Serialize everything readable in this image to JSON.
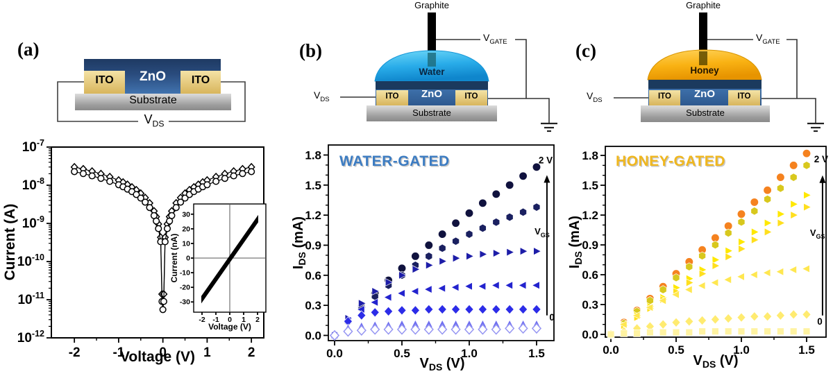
{
  "figure": {
    "panel_labels": {
      "a": "(a)",
      "b": "(b)",
      "c": "(c)"
    },
    "schematics": {
      "a": {
        "zno": "ZnO",
        "ito_left": "ITO",
        "ito_right": "ITO",
        "substrate": "Substrate",
        "vds_base": "V",
        "vds_sub": "DS"
      },
      "b": {
        "graphite": "Graphite",
        "liquid": "Water",
        "zno": "ZnO",
        "ito_left": "ITO",
        "ito_right": "ITO",
        "substrate": "Substrate",
        "vds_base": "V",
        "vds_sub": "DS",
        "vgate_base": "V",
        "vgate_sub": "GATE"
      },
      "c": {
        "graphite": "Graphite",
        "liquid": "Honey",
        "zno": "ZnO",
        "ito_left": "ITO",
        "ito_right": "ITO",
        "substrate": "Substrate",
        "vds_base": "V",
        "vds_sub": "DS",
        "vgate_base": "V",
        "vgate_sub": "GATE"
      }
    },
    "colors": {
      "water_title": "#3C7CC2",
      "honey_title": "#F0B71E",
      "water_drop": "#29B2E8",
      "honey_drop": "#F7B112",
      "zno_dark": "#1B3A5E",
      "zno_body": "#3D6CA5",
      "ito": "#EDD584",
      "substrate_gray": "#A8A8A8"
    }
  },
  "chart_data": [
    {
      "id": "iv-semilog",
      "type": "scatter",
      "ylog": true,
      "xlabel": [
        {
          "t": "Voltage (V)"
        }
      ],
      "ylabel": [
        {
          "t": "Current (A)"
        }
      ],
      "xlim": [
        -2.52,
        2.28
      ],
      "ylim": [
        -7,
        -12
      ],
      "xticks": [
        [
          -2,
          "-2"
        ],
        [
          -1,
          "-1"
        ],
        [
          0,
          "0"
        ],
        [
          1,
          "1"
        ],
        [
          2,
          "2"
        ]
      ],
      "xminor": [
        -1.5,
        -0.5,
        0.5,
        1.5
      ],
      "ylog_decades": [
        -7,
        -8,
        -9,
        -10,
        -11,
        -12
      ],
      "grid": false,
      "legend": false,
      "series": [
        {
          "name": "sweep-diamonds",
          "marker": "diamond-open",
          "color": "#000000",
          "line": true,
          "points": [
            [
              -2,
              2.99e-08
            ],
            [
              -1.8,
              2.66e-08
            ],
            [
              -1.6,
              2.32e-08
            ],
            [
              -1.4,
              1.99e-08
            ],
            [
              -1.2,
              1.66e-08
            ],
            [
              -1,
              1.35e-08
            ],
            [
              -0.9,
              1.2e-08
            ],
            [
              -0.8,
              1.04e-08
            ],
            [
              -0.7,
              8.9e-09
            ],
            [
              -0.6,
              7.5e-09
            ],
            [
              -0.5,
              6.1e-09
            ],
            [
              -0.4,
              4.7e-09
            ],
            [
              -0.3,
              3.4e-09
            ],
            [
              -0.2,
              2.1e-09
            ],
            [
              -0.15,
              1.5e-09
            ],
            [
              -0.1,
              9.6e-10
            ],
            [
              -0.05,
              4.3e-10
            ],
            [
              -0.02,
              1.4e-11
            ],
            [
              0,
              9e-12
            ],
            [
              0.02,
              1.4e-11
            ],
            [
              0.05,
              4.3e-10
            ],
            [
              0.1,
              9.6e-10
            ],
            [
              0.15,
              1.5e-09
            ],
            [
              0.2,
              2.1e-09
            ],
            [
              0.3,
              3.4e-09
            ],
            [
              0.4,
              4.7e-09
            ],
            [
              0.5,
              6.1e-09
            ],
            [
              0.6,
              7.5e-09
            ],
            [
              0.7,
              8.9e-09
            ],
            [
              0.8,
              1.04e-08
            ],
            [
              0.9,
              1.2e-08
            ],
            [
              1,
              1.35e-08
            ],
            [
              1.2,
              1.66e-08
            ],
            [
              1.4,
              1.99e-08
            ],
            [
              1.6,
              2.32e-08
            ],
            [
              1.8,
              2.66e-08
            ],
            [
              2,
              2.99e-08
            ]
          ]
        },
        {
          "name": "sweep-circles",
          "marker": "circle-open",
          "color": "#000000",
          "line": true,
          "points": [
            [
              -2,
              2.27e-08
            ],
            [
              -1.8,
              2.02e-08
            ],
            [
              -1.6,
              1.76e-08
            ],
            [
              -1.4,
              1.51e-08
            ],
            [
              -1.2,
              1.26e-08
            ],
            [
              -1,
              1.03e-08
            ],
            [
              -0.9,
              9.1e-09
            ],
            [
              -0.8,
              7.9e-09
            ],
            [
              -0.7,
              6.8e-09
            ],
            [
              -0.6,
              5.7e-09
            ],
            [
              -0.5,
              4.6e-09
            ],
            [
              -0.4,
              3.6e-09
            ],
            [
              -0.3,
              2.6e-09
            ],
            [
              -0.2,
              1.6e-09
            ],
            [
              -0.15,
              1.15e-09
            ],
            [
              -0.1,
              7.3e-10
            ],
            [
              -0.05,
              3.3e-10
            ],
            [
              -0.02,
              9e-12
            ],
            [
              0,
              5.5e-12
            ],
            [
              0.02,
              9e-12
            ],
            [
              0.05,
              3.3e-10
            ],
            [
              0.1,
              7.3e-10
            ],
            [
              0.15,
              1.15e-09
            ],
            [
              0.2,
              1.6e-09
            ],
            [
              0.3,
              2.6e-09
            ],
            [
              0.4,
              3.6e-09
            ],
            [
              0.5,
              4.6e-09
            ],
            [
              0.6,
              5.7e-09
            ],
            [
              0.7,
              6.8e-09
            ],
            [
              0.8,
              7.9e-09
            ],
            [
              0.9,
              9.1e-09
            ],
            [
              1,
              1.03e-08
            ],
            [
              1.2,
              1.26e-08
            ],
            [
              1.4,
              1.51e-08
            ],
            [
              1.6,
              1.76e-08
            ],
            [
              1.8,
              2.02e-08
            ],
            [
              2,
              2.27e-08
            ]
          ]
        }
      ]
    },
    {
      "id": "iv-inset",
      "type": "band",
      "crosshair": true,
      "xlabel": [
        {
          "t": "Voltage (V)"
        }
      ],
      "ylabel": [
        {
          "t": "Current (nA)"
        }
      ],
      "xlim": [
        -2.6,
        2.6
      ],
      "ylim": [
        37,
        -37
      ],
      "xticks": [
        [
          -2,
          "-2"
        ],
        [
          -1,
          "-1"
        ],
        [
          0,
          "0"
        ],
        [
          1,
          "1"
        ],
        [
          2,
          "2"
        ]
      ],
      "yticks": [
        [
          30,
          "30"
        ],
        [
          20,
          "20"
        ],
        [
          10,
          "10"
        ],
        [
          0,
          "0"
        ],
        [
          -10,
          "-10"
        ],
        [
          -20,
          "-20"
        ],
        [
          -30,
          "-30"
        ]
      ],
      "band": {
        "color": "#000000",
        "points": [
          [
            -2.05,
            -31
          ],
          [
            2.05,
            24.5
          ],
          [
            2.05,
            29.5
          ],
          [
            -2.05,
            -26
          ]
        ]
      }
    },
    {
      "id": "water-output",
      "type": "scatter",
      "title": "WATER-GATED",
      "title_color": "#3C7CC2",
      "xlabel": [
        {
          "t": "V"
        },
        {
          "t": "DS",
          "s": 1
        },
        {
          "t": " (V)"
        }
      ],
      "ylabel": [
        {
          "t": "I"
        },
        {
          "t": "DS",
          "s": 1
        },
        {
          "t": " (mA)"
        }
      ],
      "xlim": [
        -0.0464,
        1.629
      ],
      "ylim": [
        1.9,
        -0.052
      ],
      "xticks": [
        [
          0,
          "0.0"
        ],
        [
          0.5,
          "0.5"
        ],
        [
          1,
          "1.0"
        ],
        [
          1.5,
          "1.5"
        ]
      ],
      "xminor": [
        0.25,
        0.75,
        1.25
      ],
      "yticks": [
        [
          0,
          "0.0"
        ],
        [
          0.3,
          "0.3"
        ],
        [
          0.6,
          "0.6"
        ],
        [
          0.9,
          "0.9"
        ],
        [
          1.2,
          "1.2"
        ],
        [
          1.5,
          "1.5"
        ],
        [
          1.8,
          "1.8"
        ]
      ],
      "yminor": [
        0.1,
        0.2,
        0.4,
        0.5,
        0.7,
        0.8,
        1.0,
        1.1,
        1.3,
        1.4,
        1.6,
        1.7
      ],
      "x": [
        0,
        0.1,
        0.2,
        0.3,
        0.4,
        0.5,
        0.6,
        0.7,
        0.8,
        0.9,
        1.0,
        1.1,
        1.2,
        1.3,
        1.4,
        1.5
      ],
      "series": [
        {
          "name": "Vgs 2 V",
          "marker": "circle",
          "color": "#10123E",
          "values": [
            0,
            0.14,
            0.28,
            0.42,
            0.55,
            0.67,
            0.79,
            0.9,
            1.01,
            1.12,
            1.22,
            1.32,
            1.41,
            1.5,
            1.59,
            1.68
          ]
        },
        {
          "name": "Vgs step 6",
          "marker": "hexagon",
          "color": "#1A2060",
          "values": [
            0,
            0.14,
            0.27,
            0.39,
            0.5,
            0.6,
            0.7,
            0.79,
            0.87,
            0.94,
            1.01,
            1.07,
            1.13,
            1.18,
            1.23,
            1.28
          ]
        },
        {
          "name": "Vgs step 5",
          "marker": "tri-right",
          "color": "#1D1DA8",
          "values": [
            0,
            0.17,
            0.32,
            0.44,
            0.53,
            0.6,
            0.66,
            0.7,
            0.74,
            0.77,
            0.79,
            0.81,
            0.82,
            0.83,
            0.84,
            0.84
          ]
        },
        {
          "name": "Vgs step 4",
          "marker": "tri-left",
          "color": "#2323CE",
          "values": [
            0,
            0.15,
            0.26,
            0.33,
            0.38,
            0.42,
            0.44,
            0.46,
            0.47,
            0.48,
            0.49,
            0.49,
            0.5,
            0.5,
            0.5,
            0.5
          ]
        },
        {
          "name": "Vgs step 3",
          "marker": "diamond",
          "color": "#2C2CE8",
          "values": [
            0,
            0.14,
            0.2,
            0.23,
            0.24,
            0.25,
            0.25,
            0.26,
            0.26,
            0.26,
            0.26,
            0.26,
            0.26,
            0.26,
            0.26,
            0.26
          ]
        },
        {
          "name": "Vgs step 2",
          "marker": "tri-up",
          "color": "#7070F0",
          "values": [
            0,
            0.07,
            0.09,
            0.1,
            0.1,
            0.11,
            0.11,
            0.11,
            0.11,
            0.11,
            0.11,
            0.11,
            0.11,
            0.11,
            0.11,
            0.11
          ]
        },
        {
          "name": "Vgs 0",
          "marker": "diamond-open",
          "color": "#9696F2",
          "values": [
            0,
            0.04,
            0.05,
            0.06,
            0.06,
            0.06,
            0.06,
            0.06,
            0.06,
            0.06,
            0.06,
            0.06,
            0.06,
            0.07,
            0.07,
            0.07
          ]
        }
      ],
      "annotations": [
        {
          "kind": "varrow",
          "x": 1.577,
          "y0": 0.2,
          "y1": 1.6
        },
        {
          "kind": "text",
          "x": 1.567,
          "y": 1.715,
          "text": "2 V"
        },
        {
          "kind": "parts",
          "x": 1.485,
          "y": 1.008,
          "parts": [
            {
              "t": "V"
            },
            {
              "t": "GS",
              "s": 1
            }
          ]
        },
        {
          "kind": "text",
          "x": 1.614,
          "y": 0.149,
          "text": "0"
        }
      ]
    },
    {
      "id": "honey-output",
      "type": "scatter",
      "title": "HONEY-GATED",
      "title_color": "#F0B71E",
      "xlabel": [
        {
          "t": "V"
        },
        {
          "t": "DS",
          "s": 1
        },
        {
          "t": " (V)"
        }
      ],
      "ylabel": [
        {
          "t": "I"
        },
        {
          "t": "DS",
          "s": 1
        },
        {
          "t": " (mA)"
        }
      ],
      "xlim": [
        -0.0426,
        1.649
      ],
      "ylim": [
        1.891,
        -0.028
      ],
      "xticks": [
        [
          0,
          "0.0"
        ],
        [
          0.5,
          "0.5"
        ],
        [
          1,
          "1.0"
        ],
        [
          1.5,
          "1.5"
        ]
      ],
      "xminor": [
        0.25,
        0.75,
        1.25
      ],
      "yticks": [
        [
          0,
          "0.0"
        ],
        [
          0.3,
          "0.3"
        ],
        [
          0.6,
          "0.6"
        ],
        [
          0.9,
          "0.9"
        ],
        [
          1.2,
          "1.2"
        ],
        [
          1.5,
          "1.5"
        ],
        [
          1.8,
          "1.8"
        ]
      ],
      "yminor": [
        0.1,
        0.2,
        0.4,
        0.5,
        0.7,
        0.8,
        1.0,
        1.1,
        1.3,
        1.4,
        1.6,
        1.7
      ],
      "x": [
        0,
        0.1,
        0.2,
        0.3,
        0.4,
        0.5,
        0.6,
        0.7,
        0.8,
        0.9,
        1.0,
        1.1,
        1.2,
        1.3,
        1.4,
        1.5
      ],
      "series": [
        {
          "name": "Vgs 2 V",
          "marker": "circle",
          "color": "#F5821F",
          "values": [
            0,
            0.12,
            0.24,
            0.36,
            0.48,
            0.61,
            0.73,
            0.85,
            0.97,
            1.09,
            1.21,
            1.33,
            1.45,
            1.58,
            1.7,
            1.82
          ]
        },
        {
          "name": "Vgs step 6",
          "marker": "hexagon",
          "color": "#D8C81D",
          "values": [
            0,
            0.11,
            0.23,
            0.34,
            0.45,
            0.57,
            0.68,
            0.79,
            0.9,
            1.02,
            1.13,
            1.24,
            1.36,
            1.47,
            1.58,
            1.7
          ]
        },
        {
          "name": "Vgs step 5",
          "marker": "tri-right",
          "color": "#FFE800",
          "values": [
            0,
            0.09,
            0.19,
            0.28,
            0.37,
            0.47,
            0.56,
            0.65,
            0.75,
            0.84,
            0.93,
            1.03,
            1.12,
            1.21,
            1.31,
            1.4
          ]
        },
        {
          "name": "Vgs step 4",
          "marker": "tri-right",
          "color": "#FFDF1E",
          "values": [
            0,
            0.09,
            0.17,
            0.26,
            0.35,
            0.43,
            0.52,
            0.61,
            0.69,
            0.78,
            0.86,
            0.95,
            1.03,
            1.12,
            1.2,
            1.28
          ]
        },
        {
          "name": "Vgs step 3",
          "marker": "tri-left",
          "color": "#FFE750",
          "values": [
            0,
            0.1,
            0.19,
            0.27,
            0.34,
            0.4,
            0.45,
            0.49,
            0.52,
            0.55,
            0.58,
            0.6,
            0.62,
            0.63,
            0.65,
            0.66
          ]
        },
        {
          "name": "Vgs step 2",
          "marker": "diamond",
          "color": "#FFEB70",
          "values": [
            0,
            0.03,
            0.06,
            0.08,
            0.1,
            0.12,
            0.13,
            0.14,
            0.15,
            0.16,
            0.17,
            0.18,
            0.18,
            0.19,
            0.2,
            0.2
          ]
        },
        {
          "name": "Vgs 0",
          "marker": "square",
          "color": "#FFF3A2",
          "values": [
            0,
            0.01,
            0.01,
            0.02,
            0.02,
            0.02,
            0.02,
            0.03,
            0.03,
            0.03,
            0.03,
            0.03,
            0.03,
            0.03,
            0.03,
            0.03
          ]
        }
      ],
      "annotations": [
        {
          "kind": "varrow",
          "x": 1.622,
          "y0": 0.19,
          "y1": 1.6
        },
        {
          "kind": "text",
          "x": 1.611,
          "y": 1.731,
          "text": "2 V"
        },
        {
          "kind": "parts",
          "x": 1.526,
          "y": 0.991,
          "parts": [
            {
              "t": "V"
            },
            {
              "t": "GS",
              "s": 1
            }
          ]
        },
        {
          "kind": "text",
          "x": 1.601,
          "y": 0.098,
          "text": "0"
        }
      ]
    }
  ]
}
